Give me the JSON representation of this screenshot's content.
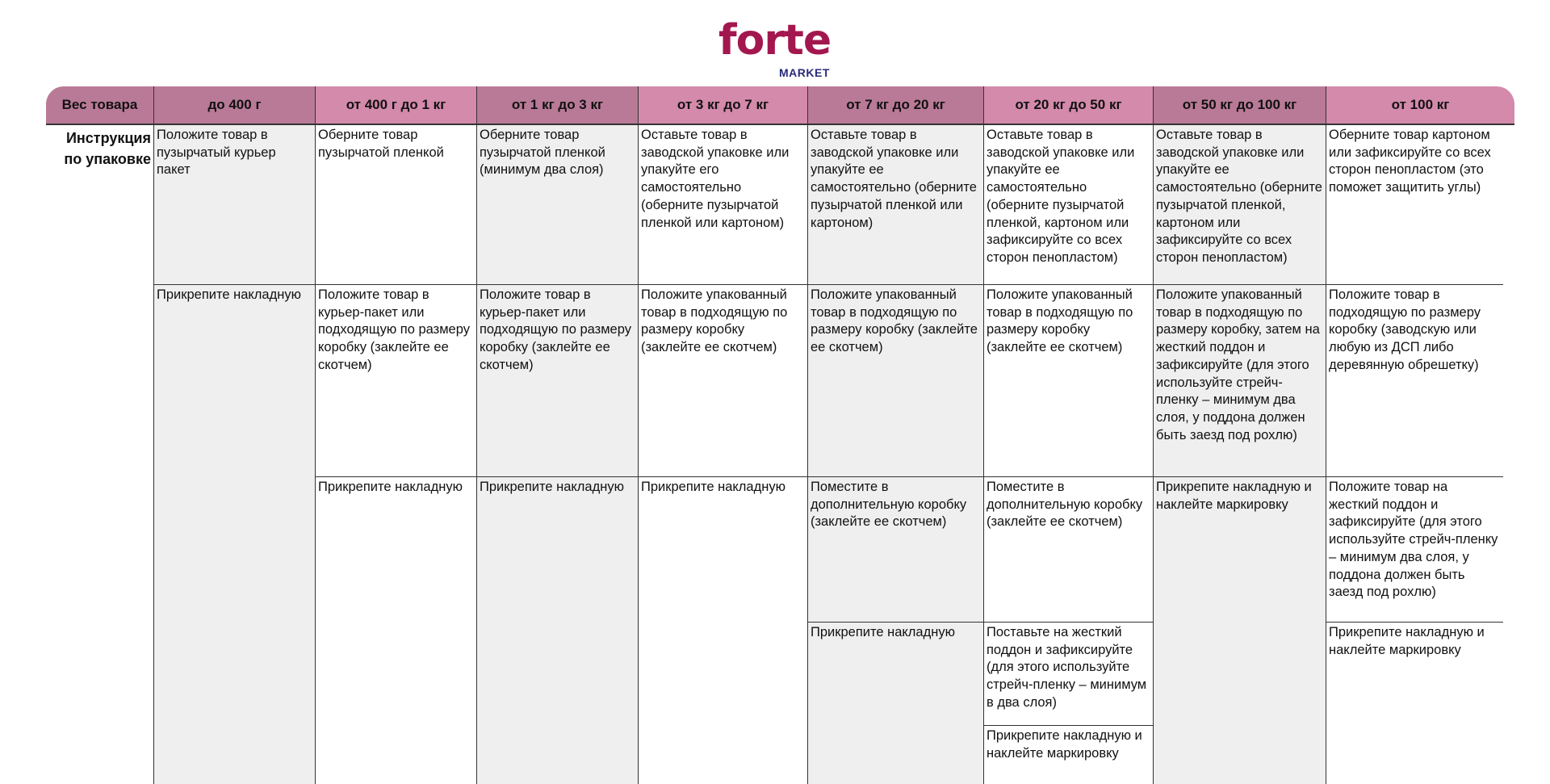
{
  "logo": {
    "word": "forte",
    "sub": "MARKET",
    "color": "#a3174f"
  },
  "header": {
    "label": "Вес товара",
    "columns": [
      "до 400 г",
      "от 400 г до 1 кг",
      "от 1 кг до 3 кг",
      "от 3 кг до 7 кг",
      "от 7 кг до 20 кг",
      "от 20 кг до 50 кг",
      "от 50 кг до 100 кг",
      "от 100 кг"
    ]
  },
  "row_label": "Инструкция по упаковке",
  "columns": [
    {
      "steps": [
        "Положите товар в пузырчатый курьер пакет",
        "Прикрепите накладную"
      ]
    },
    {
      "steps": [
        "Оберните товар пузырчатой пленкой",
        "Положите товар в курьер-пакет или подходящую по размеру коробку (заклейте ее скотчем)",
        "Прикрепите накладную"
      ]
    },
    {
      "steps": [
        "Оберните товар пузырчатой пленкой (минимум два слоя)",
        "Положите товар в курьер-пакет или подходящую по размеру коробку (заклейте ее скотчем)",
        "Прикрепите накладную"
      ]
    },
    {
      "steps": [
        "Оставьте товар в заводской упаковке или упакуйте его самостоятельно (оберните пузырчатой пленкой или картоном)",
        "Положите упакованный товар в подходящую по размеру коробку (заклейте ее скотчем)",
        "Прикрепите накладную"
      ]
    },
    {
      "steps": [
        "Оставьте товар в заводской упаковке или упакуйте ее самостоятельно (оберните пузырчатой пленкой или картоном)",
        "Положите упакованный товар в подходящую по размеру коробку (заклейте ее скотчем)",
        "Поместите в дополнительную коробку (заклейте ее скотчем)",
        "Прикрепите накладную"
      ]
    },
    {
      "steps": [
        "Оставьте товар в заводской упаковке или упакуйте ее самостоятельно (оберните пузырчатой пленкой, картоном или зафиксируйте со всех сторон пенопластом)",
        "Положите упакованный товар в подходящую по размеру коробку (заклейте ее скотчем)",
        "Поместите в дополнительную коробку (заклейте ее скотчем)",
        "Поставьте на жесткий поддон и зафиксируйте (для этого используйте стрейч-пленку – минимум в два слоя)",
        "Прикрепите накладную и наклейте маркировку"
      ]
    },
    {
      "steps": [
        "Оставьте товар в заводской упаковке или упакуйте ее самостоятельно (оберните пузырчатой пленкой, картоном или зафиксируйте со всех сторон пенопластом)",
        "Положите упакованный товар в подходящую по размеру коробку, затем на жесткий поддон и зафиксируйте (для этого используйте стрейч-пленку – минимум два слоя, у поддона должен быть заезд под рохлю)",
        "Прикрепите накладную и наклейте маркировку"
      ]
    },
    {
      "steps": [
        "Оберните товар картоном или зафиксируйте со всех сторон пенопластом (это поможет защитить углы)",
        "Положите товар в подходящую по размеру коробку (заводскую или любую из ДСП либо деревянную обрешетку)",
        "Положите товар на жесткий поддон и зафиксируйте (для этого используйте стрейч-пленку – минимум два слоя, у поддона должен быть заезд под рохлю)",
        "Прикрепите накладную и наклейте маркировку"
      ]
    }
  ],
  "colors": {
    "header_dark": "#b97a97",
    "header_light": "#d48aab",
    "cell_grey": "#efefef"
  }
}
